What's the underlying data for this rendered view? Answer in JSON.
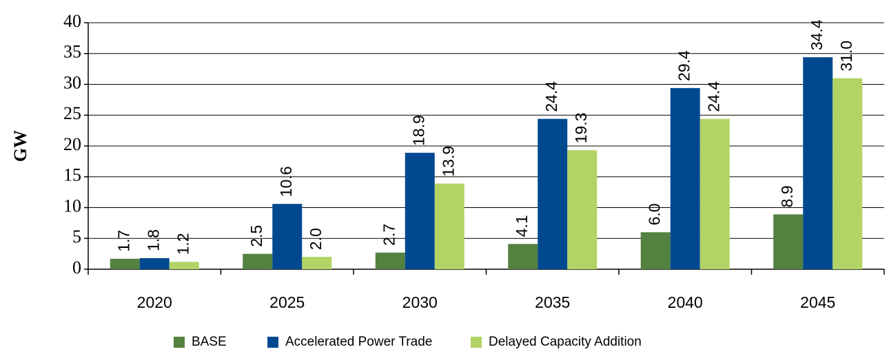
{
  "chart_data": {
    "type": "bar",
    "ylabel": "GW",
    "categories": [
      "2020",
      "2025",
      "2030",
      "2035",
      "2040",
      "2045"
    ],
    "series": [
      {
        "name": "BASE",
        "color": "#538140",
        "values": [
          1.7,
          2.5,
          2.7,
          4.1,
          6.0,
          8.9
        ],
        "value_labels": [
          "1.7",
          "2.5",
          "2.7",
          "4.1",
          "6.0",
          "8.9"
        ]
      },
      {
        "name": "Accelerated Power Trade",
        "color": "#004990",
        "values": [
          1.8,
          10.6,
          18.9,
          24.4,
          29.4,
          34.4
        ],
        "value_labels": [
          "1.8",
          "10.6",
          "18.9",
          "24.4",
          "29.4",
          "34.4"
        ]
      },
      {
        "name": "Delayed Capacity Addition",
        "color": "#b2d366",
        "values": [
          1.2,
          2.0,
          13.9,
          19.3,
          24.4,
          31.0
        ],
        "value_labels": [
          "1.2",
          "2.0",
          "13.9",
          "19.3",
          "24.4",
          "31.0"
        ]
      }
    ],
    "ylim": [
      0,
      40
    ],
    "yticks": [
      0,
      5,
      10,
      15,
      20,
      25,
      30,
      35,
      40
    ],
    "grid": true,
    "legend": "bottom"
  }
}
